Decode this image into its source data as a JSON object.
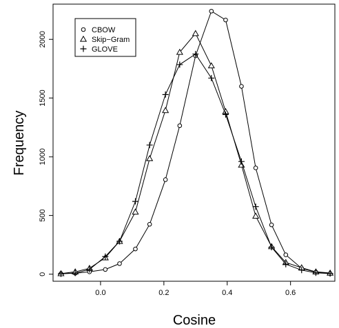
{
  "chart_data": {
    "type": "line",
    "title": "",
    "xlabel": "Cosine",
    "ylabel": "Frequency",
    "xlim": [
      -0.15,
      0.74
    ],
    "ylim": [
      -60,
      2300
    ],
    "xticks": [
      {
        "value": 0.0,
        "label": "0.0"
      },
      {
        "value": 0.2,
        "label": "0.2"
      },
      {
        "value": 0.4,
        "label": "0.4"
      },
      {
        "value": 0.6,
        "label": "0.6"
      }
    ],
    "yticks": [
      {
        "value": 0,
        "label": "0"
      },
      {
        "value": 500,
        "label": "500"
      },
      {
        "value": 1000,
        "label": "1000"
      },
      {
        "value": 1500,
        "label": "1500"
      },
      {
        "value": 2000,
        "label": "2000"
      }
    ],
    "grid": false,
    "legend_position": "top-left",
    "series": [
      {
        "name": "CBOW",
        "marker": "circle",
        "color": "#000000",
        "x": [
          -0.125,
          -0.08,
          -0.035,
          0.015,
          0.06,
          0.11,
          0.155,
          0.205,
          0.25,
          0.3,
          0.35,
          0.395,
          0.445,
          0.49,
          0.54,
          0.585,
          0.635,
          0.68,
          0.725
        ],
        "y": [
          5,
          8,
          20,
          40,
          90,
          215,
          425,
          805,
          1265,
          1860,
          2240,
          2165,
          1600,
          905,
          420,
          165,
          50,
          18,
          5
        ]
      },
      {
        "name": "Skip−Gram",
        "marker": "triangle",
        "color": "#000000",
        "x": [
          -0.125,
          -0.08,
          -0.035,
          0.015,
          0.06,
          0.11,
          0.155,
          0.205,
          0.25,
          0.3,
          0.35,
          0.395,
          0.445,
          0.49,
          0.54,
          0.585,
          0.635,
          0.68,
          0.725
        ],
        "y": [
          5,
          20,
          50,
          140,
          280,
          530,
          985,
          1395,
          1890,
          2050,
          1775,
          1385,
          930,
          495,
          235,
          100,
          55,
          20,
          10
        ]
      },
      {
        "name": "GLOVE",
        "marker": "plus",
        "color": "#000000",
        "x": [
          -0.125,
          -0.08,
          -0.035,
          0.015,
          0.06,
          0.11,
          0.155,
          0.205,
          0.25,
          0.3,
          0.35,
          0.395,
          0.445,
          0.49,
          0.54,
          0.585,
          0.635,
          0.68,
          0.725
        ],
        "y": [
          3,
          10,
          40,
          150,
          280,
          620,
          1100,
          1530,
          1785,
          1875,
          1670,
          1360,
          960,
          575,
          230,
          85,
          35,
          12,
          5
        ]
      }
    ]
  }
}
